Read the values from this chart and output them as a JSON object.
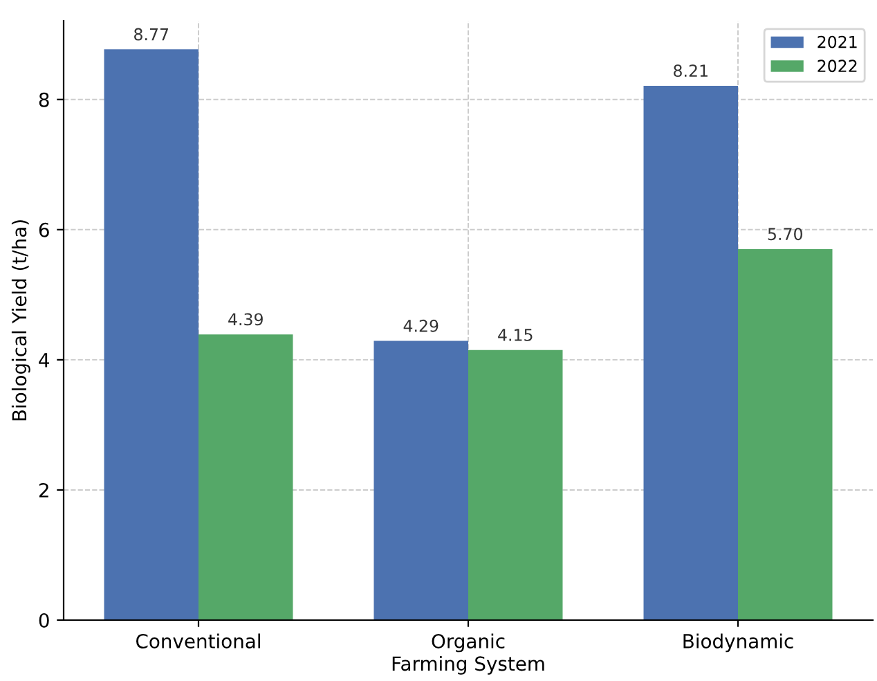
{
  "chart_data": {
    "type": "bar",
    "xlabel": "Farming System",
    "ylabel": "Biological Yield (t/ha)",
    "categories": [
      "Conventional",
      "Organic",
      "Biodynamic"
    ],
    "series": [
      {
        "name": "2021",
        "color": "#4c72b0",
        "values": [
          8.77,
          4.29,
          8.21
        ],
        "value_labels": [
          "8.77",
          "4.29",
          "8.21"
        ]
      },
      {
        "name": "2022",
        "color": "#55a868",
        "values": [
          4.39,
          4.15,
          5.7
        ],
        "value_labels": [
          "4.39",
          "4.15",
          "5.70"
        ]
      }
    ],
    "ylim": [
      0,
      9.21
    ],
    "yticks": [
      0,
      2,
      4,
      6,
      8
    ],
    "grid": true,
    "legend": "top right"
  }
}
